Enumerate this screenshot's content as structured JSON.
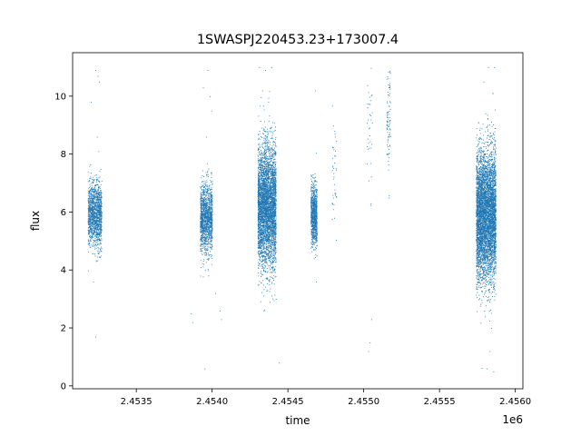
{
  "chart_data": {
    "type": "scatter",
    "title": "1SWASPJ220453.23+173007.4",
    "xlabel": "time",
    "ylabel": "flux",
    "x_offset_label": "1e6",
    "x_scale": 1000000,
    "xlim": [
      2453080,
      2456050
    ],
    "ylim": [
      -0.1,
      11.5
    ],
    "x_ticks": [
      2453500,
      2454000,
      2454500,
      2455000,
      2455500,
      2456000
    ],
    "x_tick_labels": [
      "2.4535",
      "2.4540",
      "2.4545",
      "2.4550",
      "2.4555",
      "2.4560"
    ],
    "y_ticks": [
      0,
      2,
      4,
      6,
      8,
      10
    ],
    "y_tick_labels": [
      "0",
      "2",
      "4",
      "6",
      "8",
      "10"
    ],
    "grid": false,
    "point_color": "#1f77b4",
    "clusters": [
      {
        "x_start": 2453180,
        "x_end": 2453270,
        "y_center": 5.9,
        "y_spread": 0.55,
        "n": 1400,
        "outliers": [
          [
            2453230,
            10.9
          ],
          [
            2453245,
            10.7
          ],
          [
            2453255,
            10.5
          ],
          [
            2453200,
            9.8
          ],
          [
            2453240,
            8.6
          ],
          [
            2453250,
            8.1
          ],
          [
            2453215,
            3.6
          ],
          [
            2453230,
            1.7
          ]
        ]
      },
      {
        "x_start": 2453920,
        "x_end": 2454000,
        "y_center": 5.8,
        "y_spread": 0.6,
        "n": 1400,
        "outliers": [
          [
            2453940,
            10.3
          ],
          [
            2453970,
            10.9
          ],
          [
            2453985,
            10.0
          ],
          [
            2453995,
            9.5
          ],
          [
            2453960,
            8.6
          ],
          [
            2453860,
            2.5
          ],
          [
            2453870,
            2.2
          ],
          [
            2454050,
            2.6
          ],
          [
            2454060,
            2.3
          ],
          [
            2453950,
            0.6
          ],
          [
            2454020,
            3.2
          ]
        ]
      },
      {
        "x_start": 2454300,
        "x_end": 2454420,
        "y_center": 6.2,
        "y_spread": 1.05,
        "n": 4200,
        "outliers": [
          [
            2454310,
            11.0
          ],
          [
            2454350,
            10.9
          ],
          [
            2454390,
            11.0
          ],
          [
            2454330,
            10.2
          ],
          [
            2454370,
            9.8
          ],
          [
            2454340,
            2.6
          ],
          [
            2454380,
            2.9
          ],
          [
            2454440,
            0.8
          ],
          [
            2454420,
            3.0
          ]
        ]
      },
      {
        "x_start": 2454650,
        "x_end": 2454690,
        "y_center": 5.9,
        "y_spread": 0.5,
        "n": 900,
        "outliers": [
          [
            2454680,
            10.2
          ],
          [
            2454670,
            4.4
          ],
          [
            2454660,
            7.2
          ],
          [
            2454685,
            3.6
          ]
        ]
      },
      {
        "x_start": 2454790,
        "x_end": 2454820,
        "y_center": 7.2,
        "y_spread": 1.0,
        "n": 40,
        "outliers": [
          [
            2454810,
            8.6
          ],
          [
            2454805,
            5.8
          ]
        ]
      },
      {
        "x_start": 2455020,
        "x_end": 2455060,
        "y_center": 9.0,
        "y_spread": 1.0,
        "n": 35,
        "outliers": [
          [
            2455030,
            1.2
          ],
          [
            2455040,
            1.5
          ],
          [
            2455050,
            2.3
          ],
          [
            2455045,
            6.3
          ]
        ]
      },
      {
        "x_start": 2455150,
        "x_end": 2455175,
        "y_center": 9.1,
        "y_spread": 0.9,
        "n": 90,
        "outliers": [
          [
            2455160,
            10.4
          ],
          [
            2455165,
            6.5
          ]
        ]
      },
      {
        "x_start": 2455740,
        "x_end": 2455870,
        "y_center": 5.9,
        "y_spread": 1.1,
        "n": 5200,
        "outliers": [
          [
            2455820,
            11.0
          ],
          [
            2455860,
            11.0
          ],
          [
            2455790,
            10.5
          ],
          [
            2455850,
            10.1
          ],
          [
            2455800,
            2.4
          ],
          [
            2455830,
            1.2
          ],
          [
            2455810,
            0.6
          ],
          [
            2455855,
            0.5
          ],
          [
            2455840,
            2.0
          ]
        ]
      }
    ]
  }
}
